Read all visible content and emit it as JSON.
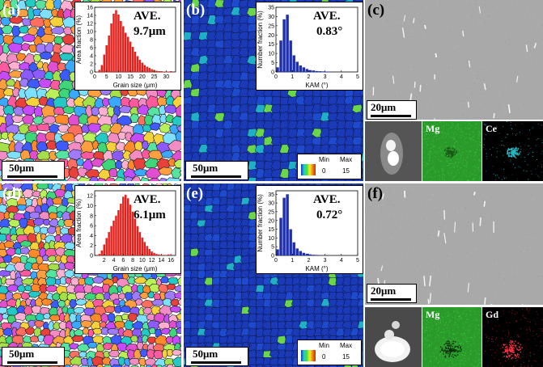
{
  "panels": {
    "a": {
      "label": "(a)",
      "scale": "50μm",
      "ave": "AVE.",
      "value": "9.7μm"
    },
    "b": {
      "label": "(b)",
      "scale": "50μm",
      "ave": "AVE.",
      "value": "0.83°"
    },
    "c": {
      "label": "(c)",
      "scale": "20μm"
    },
    "d": {
      "label": "(d)",
      "scale": "50μm",
      "ave": "AVE.",
      "value": "6.1μm"
    },
    "e": {
      "label": "(e)",
      "scale": "50μm",
      "ave": "AVE.",
      "value": "0.72°"
    },
    "f": {
      "label": "(f)",
      "scale": "20μm"
    }
  },
  "eds_top": {
    "element1": "Mg",
    "element2": "Ce"
  },
  "eds_bottom": {
    "element1": "Mg",
    "element2": "Gd"
  },
  "colorbar": {
    "min_label": "Min",
    "max_label": "Max",
    "min_value": "0",
    "max_value": "15"
  },
  "colors": {
    "bar_red": "#e4211c",
    "bar_blue": "#1f2fa8",
    "eds_mg": "#2fb52f",
    "eds_ce": "#26b8c4",
    "eds_gd": "#d0202a",
    "kam_background": "#1a3ab8"
  },
  "chart_data": [
    {
      "id": "grain_size_a",
      "type": "bar",
      "x": [
        1,
        2,
        3,
        4,
        5,
        6,
        7,
        8,
        9,
        10,
        11,
        12,
        13,
        14,
        15,
        16,
        17,
        18,
        19,
        20,
        21,
        22,
        23,
        24,
        25,
        26,
        27,
        28,
        29,
        30,
        31,
        32
      ],
      "values": [
        0.1,
        0.5,
        1.7,
        4.3,
        6.6,
        9.0,
        12.0,
        14.4,
        15.3,
        14.2,
        12.6,
        11.3,
        9.7,
        8.7,
        7.5,
        6.2,
        5.0,
        3.9,
        3.0,
        2.3,
        1.7,
        1.3,
        1.0,
        0.7,
        0.5,
        0.3,
        0.2,
        0.2,
        0.1,
        0.1,
        0.1,
        0.2
      ],
      "xlabel": "Grain size (μm)",
      "ylabel": "Area fraction (%)",
      "xlim": [
        0,
        34
      ],
      "ylim": [
        0,
        16
      ],
      "xticks": [
        0,
        5,
        10,
        15,
        20,
        25,
        30
      ],
      "xtick_labels": [
        "0",
        "5",
        "10",
        "15",
        "20",
        "25",
        "30"
      ],
      "yticks": [
        0,
        2,
        4,
        6,
        8,
        10,
        12,
        14,
        16
      ],
      "ytick_labels": [
        "0",
        "2",
        "4",
        "6",
        "8",
        "10",
        "12",
        "14",
        "16"
      ],
      "color": "#e4211c"
    },
    {
      "id": "kam_b",
      "type": "bar",
      "x": [
        0.1,
        0.3,
        0.5,
        0.7,
        0.9,
        1.1,
        1.3,
        1.5,
        1.7,
        1.9,
        2.1,
        2.3,
        2.5,
        2.7,
        2.9,
        3.1,
        3.3
      ],
      "values": [
        2.5,
        17.0,
        28.5,
        31.0,
        17.0,
        9.0,
        5.5,
        3.5,
        2.5,
        1.6,
        1.0,
        0.8,
        0.5,
        0.4,
        0.3,
        0.2,
        0.1
      ],
      "xlabel": "KAM (°)",
      "ylabel": "Number fraction (%)",
      "xlim": [
        0,
        5
      ],
      "ylim": [
        0,
        35
      ],
      "xticks": [
        0,
        1,
        2,
        3,
        4,
        5
      ],
      "xtick_labels": [
        "0",
        "1",
        "2",
        "3",
        "4",
        "5"
      ],
      "yticks": [
        0,
        5,
        10,
        15,
        20,
        25,
        30,
        35
      ],
      "ytick_labels": [
        "0",
        "5",
        "10",
        "15",
        "20",
        "25",
        "30",
        "35"
      ],
      "color": "#1f2fa8"
    },
    {
      "id": "grain_size_d",
      "type": "bar",
      "x": [
        0.5,
        1,
        1.5,
        2,
        2.5,
        3,
        3.5,
        4,
        4.5,
        5,
        5.5,
        6,
        6.5,
        7,
        7.5,
        8,
        8.5,
        9,
        9.5,
        10,
        10.5,
        11,
        11.5,
        12,
        12.5,
        13,
        13.5,
        14,
        14.5,
        15,
        15.5,
        16
      ],
      "values": [
        0.1,
        0.3,
        1.0,
        2.2,
        3.5,
        4.7,
        5.9,
        7.0,
        8.0,
        9.1,
        10.4,
        11.8,
        12.2,
        11.5,
        10.2,
        8.8,
        7.4,
        5.9,
        4.7,
        3.6,
        2.7,
        1.9,
        1.3,
        0.8,
        0.5,
        0.3,
        0.2,
        0.1,
        0.1,
        0.1,
        0.2,
        0.1
      ],
      "xlabel": "Grain size (μm)",
      "ylabel": "Area fraction (%)",
      "xlim": [
        0,
        17
      ],
      "ylim": [
        0,
        13
      ],
      "xticks": [
        2,
        4,
        6,
        8,
        10,
        12,
        14,
        16
      ],
      "xtick_labels": [
        "2",
        "4",
        "6",
        "8",
        "10",
        "12",
        "14",
        "16"
      ],
      "yticks": [
        0,
        2,
        4,
        6,
        8,
        10,
        12
      ],
      "ytick_labels": [
        "0",
        "2",
        "4",
        "6",
        "8",
        "10",
        "12"
      ],
      "color": "#e4211c"
    },
    {
      "id": "kam_e",
      "type": "bar",
      "x": [
        0.1,
        0.3,
        0.5,
        0.7,
        0.9,
        1.1,
        1.3,
        1.5,
        1.7,
        1.9,
        2.1,
        2.3,
        2.5,
        2.7,
        2.9,
        3.1
      ],
      "values": [
        3.5,
        21.5,
        33.0,
        35.0,
        15.0,
        7.5,
        4.0,
        2.5,
        1.5,
        1.0,
        0.6,
        0.4,
        0.3,
        0.2,
        0.1,
        0.1
      ],
      "xlabel": "KAM (°)",
      "ylabel": "Number fraction (%)",
      "xlim": [
        0,
        5
      ],
      "ylim": [
        0,
        37
      ],
      "xticks": [
        0,
        1,
        2,
        3,
        4,
        5
      ],
      "xtick_labels": [
        "0",
        "1",
        "2",
        "3",
        "4",
        "5"
      ],
      "yticks": [
        0,
        5,
        10,
        15,
        20,
        25,
        30,
        35
      ],
      "ytick_labels": [
        "0",
        "5",
        "10",
        "15",
        "20",
        "25",
        "30",
        "35"
      ],
      "color": "#1f2fa8"
    }
  ]
}
